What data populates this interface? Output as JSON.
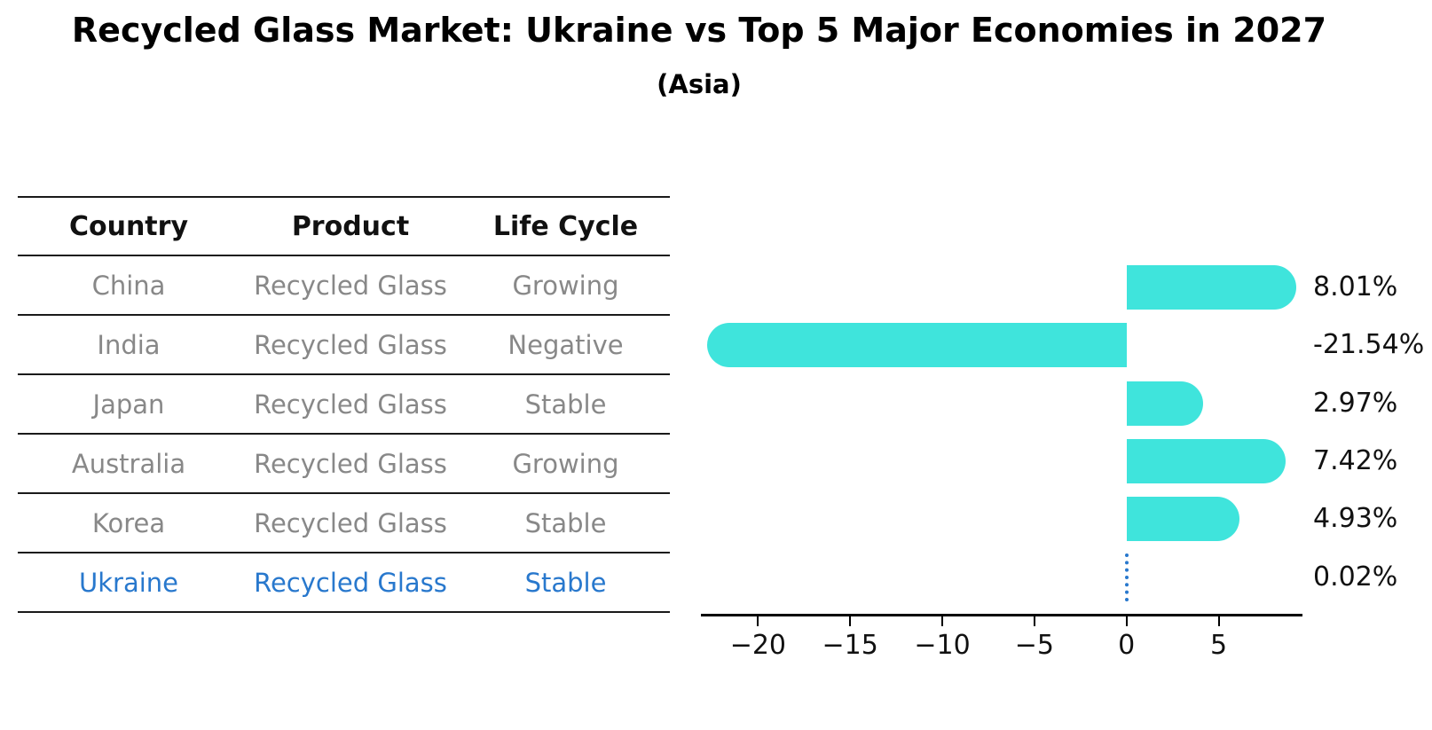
{
  "title": "Recycled Glass Market: Ukraine vs Top 5 Major Economies in 2027",
  "subtitle": "(Asia)",
  "table": {
    "headers": [
      "Country",
      "Product",
      "Life Cycle"
    ],
    "rows": [
      {
        "country": "China",
        "product": "Recycled Glass",
        "life_cycle": "Growing",
        "highlight": false
      },
      {
        "country": "India",
        "product": "Recycled Glass",
        "life_cycle": "Negative",
        "highlight": false
      },
      {
        "country": "Japan",
        "product": "Recycled Glass",
        "life_cycle": "Stable",
        "highlight": false
      },
      {
        "country": "Australia",
        "product": "Recycled Glass",
        "life_cycle": "Growing",
        "highlight": false
      },
      {
        "country": "Korea",
        "product": "Recycled Glass",
        "life_cycle": "Stable",
        "highlight": false
      },
      {
        "country": "Ukraine",
        "product": "Recycled Glass",
        "life_cycle": "Stable",
        "highlight": true
      }
    ]
  },
  "chart_data": {
    "type": "bar",
    "orientation": "horizontal",
    "categories": [
      "China",
      "India",
      "Japan",
      "Australia",
      "Korea",
      "Ukraine"
    ],
    "values": [
      8.01,
      -21.54,
      2.97,
      7.42,
      4.93,
      0.02
    ],
    "value_labels": [
      "8.01%",
      "-21.54%",
      "2.97%",
      "7.42%",
      "4.93%",
      "0.02%"
    ],
    "x_ticks": [
      -20,
      -15,
      -10,
      -5,
      0,
      5
    ],
    "x_tick_labels": [
      "−20",
      "−15",
      "−10",
      "−5",
      "0",
      "5"
    ],
    "xlim": [
      -23.1,
      9.55
    ],
    "grid": false,
    "legend": "none",
    "xlabel": "",
    "ylabel": "",
    "bar_color": "#3FE4DC",
    "highlight_index": 5,
    "highlight_color": "#2878CD",
    "highlight_marker": "dotted-zero-line"
  },
  "colors": {
    "background": "#ffffff",
    "table_rule": "#1a1a1a",
    "table_text": "#888888",
    "header_text": "#111111",
    "axis": "#000000"
  }
}
